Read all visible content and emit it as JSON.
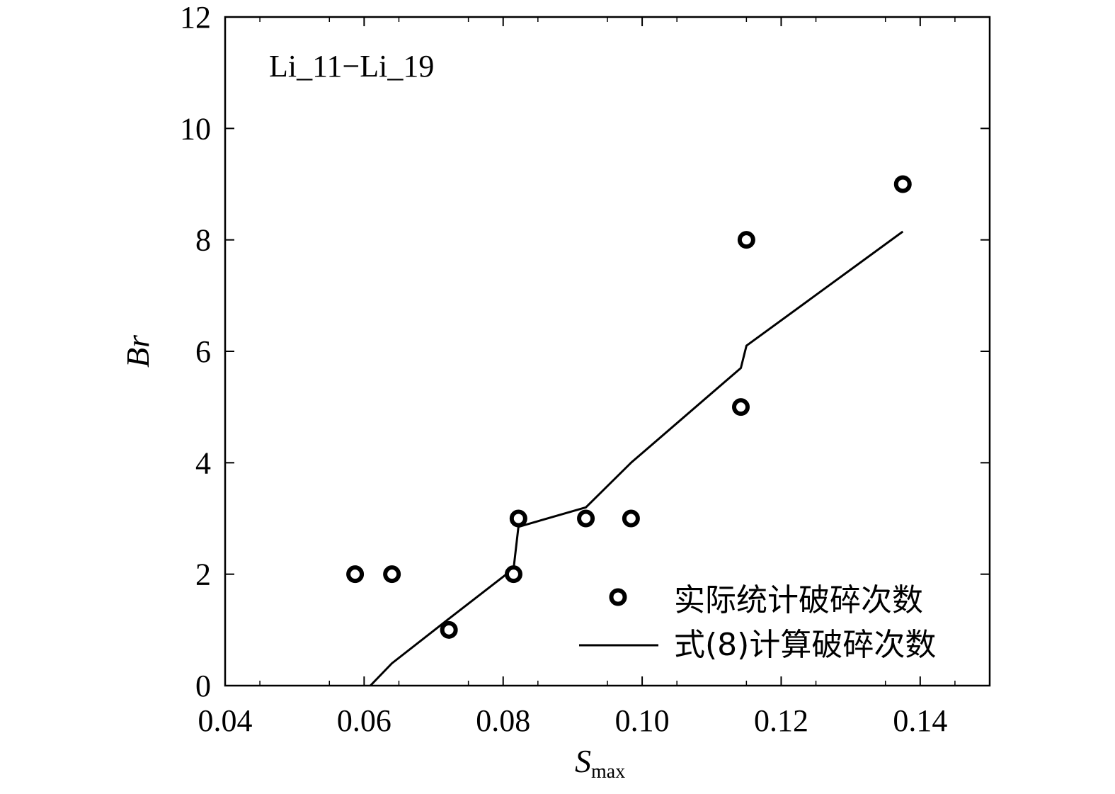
{
  "chart_data": {
    "type": "scatter",
    "annotation": "Li_11−Li_19",
    "xlabel": "S",
    "xlabel_subscript": "max",
    "ylabel": "Br",
    "xlim": [
      0.04,
      0.15
    ],
    "ylim": [
      0,
      12
    ],
    "xticks": [
      0.04,
      0.06,
      0.08,
      0.1,
      0.12,
      0.14
    ],
    "xtick_labels": [
      "0.04",
      "0.06",
      "0.08",
      "0.10",
      "0.12",
      "0.14"
    ],
    "yticks": [
      0,
      2,
      4,
      6,
      8,
      10,
      12
    ],
    "ytick_labels": [
      "0",
      "2",
      "4",
      "6",
      "8",
      "10",
      "12"
    ],
    "legend_position": "bottom-right",
    "grid": false,
    "series": [
      {
        "name": "实际统计破碎次数",
        "kind": "markers",
        "marker": "open-circle",
        "points": [
          {
            "x": 0.0587,
            "y": 2
          },
          {
            "x": 0.064,
            "y": 2
          },
          {
            "x": 0.0722,
            "y": 1
          },
          {
            "x": 0.0815,
            "y": 2
          },
          {
            "x": 0.0822,
            "y": 3
          },
          {
            "x": 0.0919,
            "y": 3
          },
          {
            "x": 0.0984,
            "y": 3
          },
          {
            "x": 0.1142,
            "y": 5
          },
          {
            "x": 0.115,
            "y": 8
          },
          {
            "x": 0.1375,
            "y": 9
          }
        ]
      },
      {
        "name": "式(8)计算破碎次数",
        "kind": "line",
        "points": [
          {
            "x": 0.0609,
            "y": 0
          },
          {
            "x": 0.064,
            "y": 0.4
          },
          {
            "x": 0.0722,
            "y": 1.2
          },
          {
            "x": 0.0815,
            "y": 2.1
          },
          {
            "x": 0.0822,
            "y": 2.85
          },
          {
            "x": 0.0919,
            "y": 3.2
          },
          {
            "x": 0.0984,
            "y": 4.0
          },
          {
            "x": 0.1142,
            "y": 5.7
          },
          {
            "x": 0.115,
            "y": 6.1
          },
          {
            "x": 0.1375,
            "y": 8.15
          }
        ]
      }
    ]
  }
}
